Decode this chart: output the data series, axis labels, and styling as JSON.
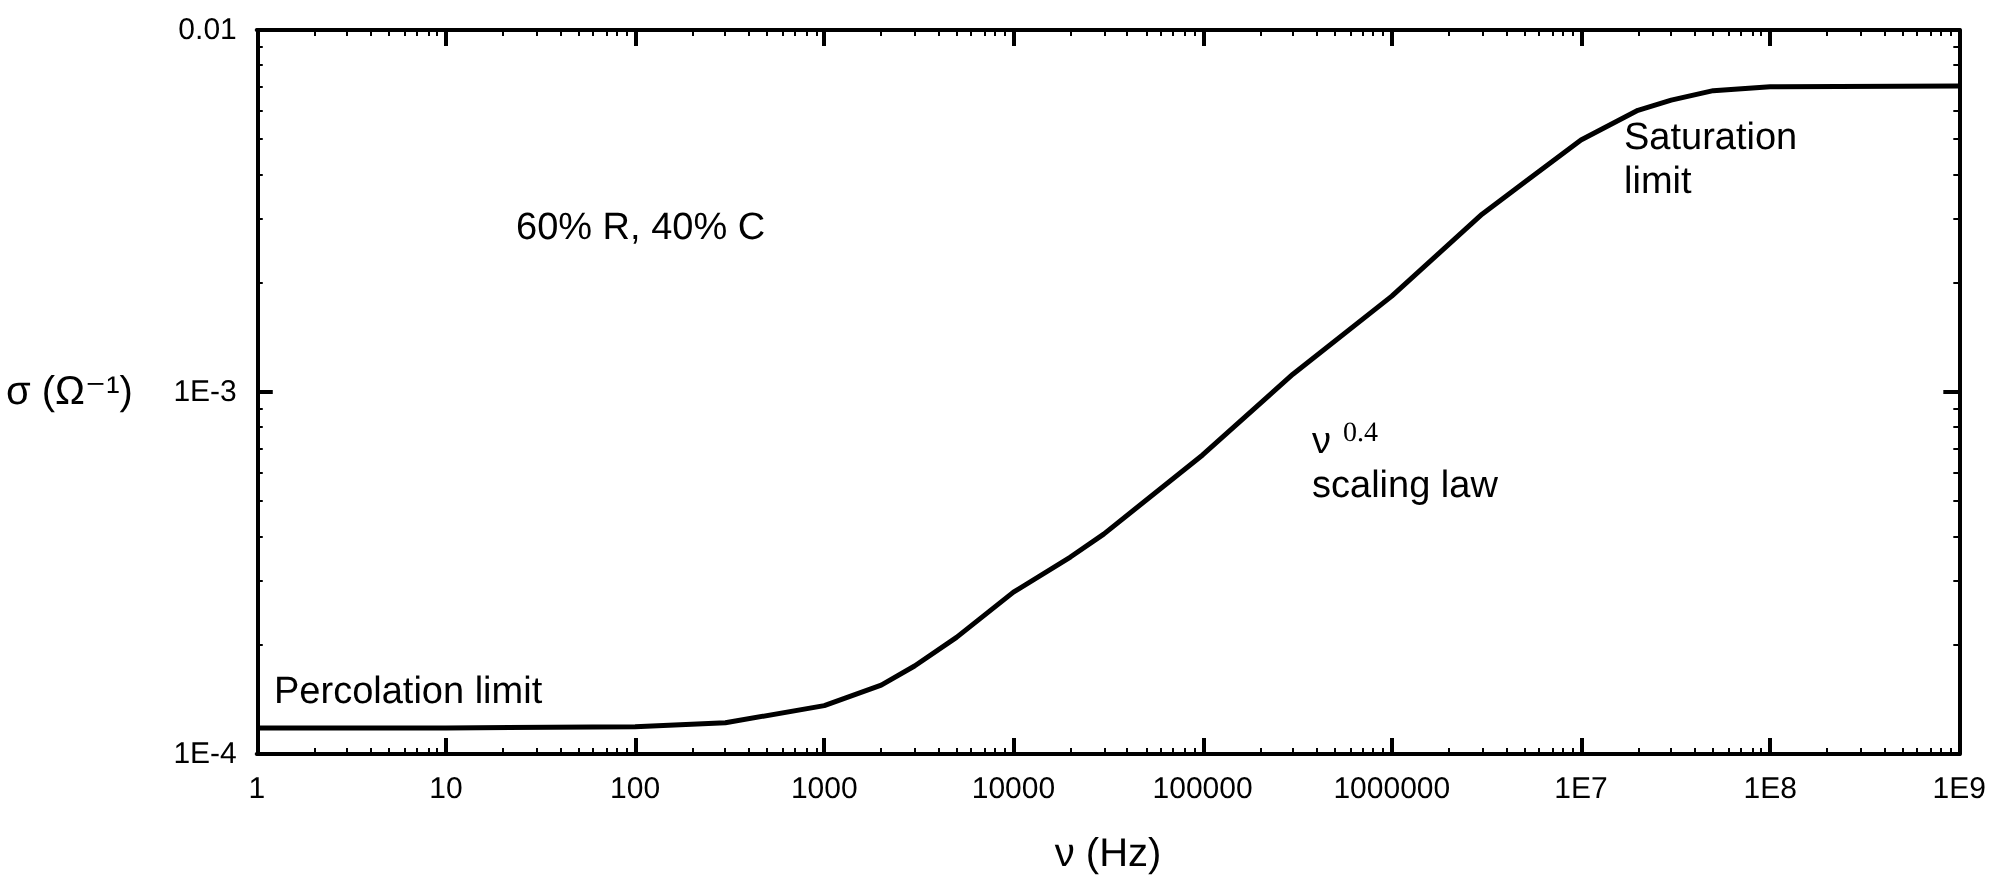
{
  "chart_data": {
    "type": "line",
    "xlabel": "ν (Hz)",
    "ylabel": "σ (Ω⁻¹)",
    "log": "xy",
    "grid": false,
    "marker": "none",
    "line_style": "solid",
    "xlim": [
      1,
      1000000000
    ],
    "xticks": [
      1,
      10,
      100,
      1000,
      10000,
      100000,
      1000000,
      {
        "value": 10000000,
        "label": "1E7"
      },
      {
        "value": 100000000,
        "label": "1E8"
      },
      {
        "value": 1000000000,
        "label": "1E9"
      }
    ],
    "ylim": [
      0.0001,
      0.01
    ],
    "yticks": [
      {
        "value": 0.0001,
        "label": "1E-4"
      },
      {
        "value": 0.001,
        "label": "1E-3"
      },
      0.01
    ],
    "annotations": [
      "60% R, 40% C",
      "Percolation limit",
      "Saturation\nlimit",
      "ν$^{0.4}$\nscaling law"
    ],
    "series": [
      {
        "color": "#000000",
        "x": [
          1,
          10,
          100,
          300,
          1000,
          2000,
          3000,
          5000,
          10000,
          20000,
          30000,
          100000,
          300000,
          1000000,
          3000000,
          10000000,
          20000000,
          30000000,
          50000000,
          100000000,
          1000000000
        ],
        "values": [
          0.000118,
          0.000118,
          0.000119,
          0.000122,
          0.000136,
          0.000155,
          0.000175,
          0.00021,
          0.00028,
          0.00035,
          0.000405,
          0.00067,
          0.00112,
          0.00184,
          0.0031,
          0.00497,
          0.006,
          0.0064,
          0.0068,
          0.00697,
          0.007
        ]
      }
    ]
  }
}
